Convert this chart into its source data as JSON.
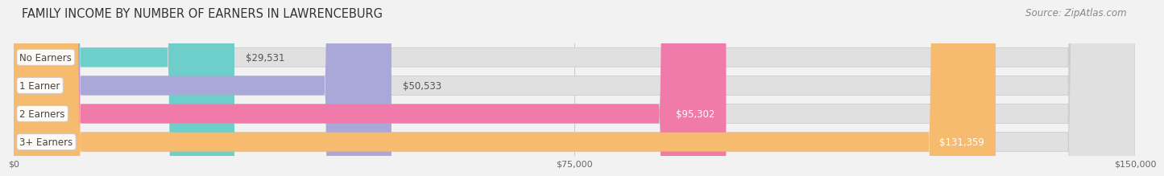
{
  "title": "FAMILY INCOME BY NUMBER OF EARNERS IN LAWRENCEBURG",
  "source": "Source: ZipAtlas.com",
  "categories": [
    "No Earners",
    "1 Earner",
    "2 Earners",
    "3+ Earners"
  ],
  "values": [
    29531,
    50533,
    95302,
    131359
  ],
  "bar_colors": [
    "#6ecfca",
    "#aaa8d8",
    "#f07aaa",
    "#f6bb6e"
  ],
  "label_colors": [
    "#555555",
    "#555555",
    "#ffffff",
    "#ffffff"
  ],
  "xlim": [
    0,
    150000
  ],
  "xticks": [
    0,
    75000,
    150000
  ],
  "xtick_labels": [
    "$0",
    "$75,000",
    "$150,000"
  ],
  "background_color": "#f2f2f2",
  "bar_bg_color": "#e0e0e0",
  "title_fontsize": 10.5,
  "source_fontsize": 8.5,
  "bar_label_fontsize": 8.5,
  "category_fontsize": 8.5
}
